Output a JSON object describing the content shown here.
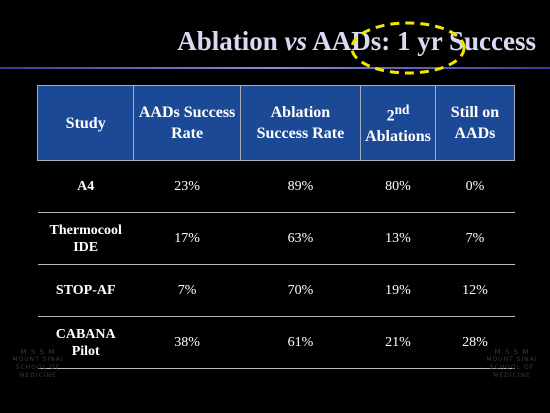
{
  "title": {
    "before": "Ablation",
    "italic": "vs",
    "after": "AADs: 1 yr Success"
  },
  "table": {
    "header": [
      "Study",
      "AADs Success Rate",
      "Ablation Success Rate",
      {
        "base": "2",
        "sup": "nd",
        "text": "Ablations"
      },
      "Still on AADs"
    ],
    "rows": [
      [
        "A4",
        "23%",
        "89%",
        "80%",
        "0%"
      ],
      [
        "Thermocool IDE",
        "17%",
        "63%",
        "13%",
        "7%"
      ],
      [
        "STOP-AF",
        "7%",
        "70%",
        "19%",
        "12%"
      ],
      [
        "CABANA Pilot",
        "38%",
        "61%",
        "21%",
        "28%"
      ]
    ]
  },
  "logo": {
    "letters": "M S S M",
    "lines": [
      "MOUNT SINAI",
      "SCHOOL OF",
      "MEDICINE"
    ]
  }
}
